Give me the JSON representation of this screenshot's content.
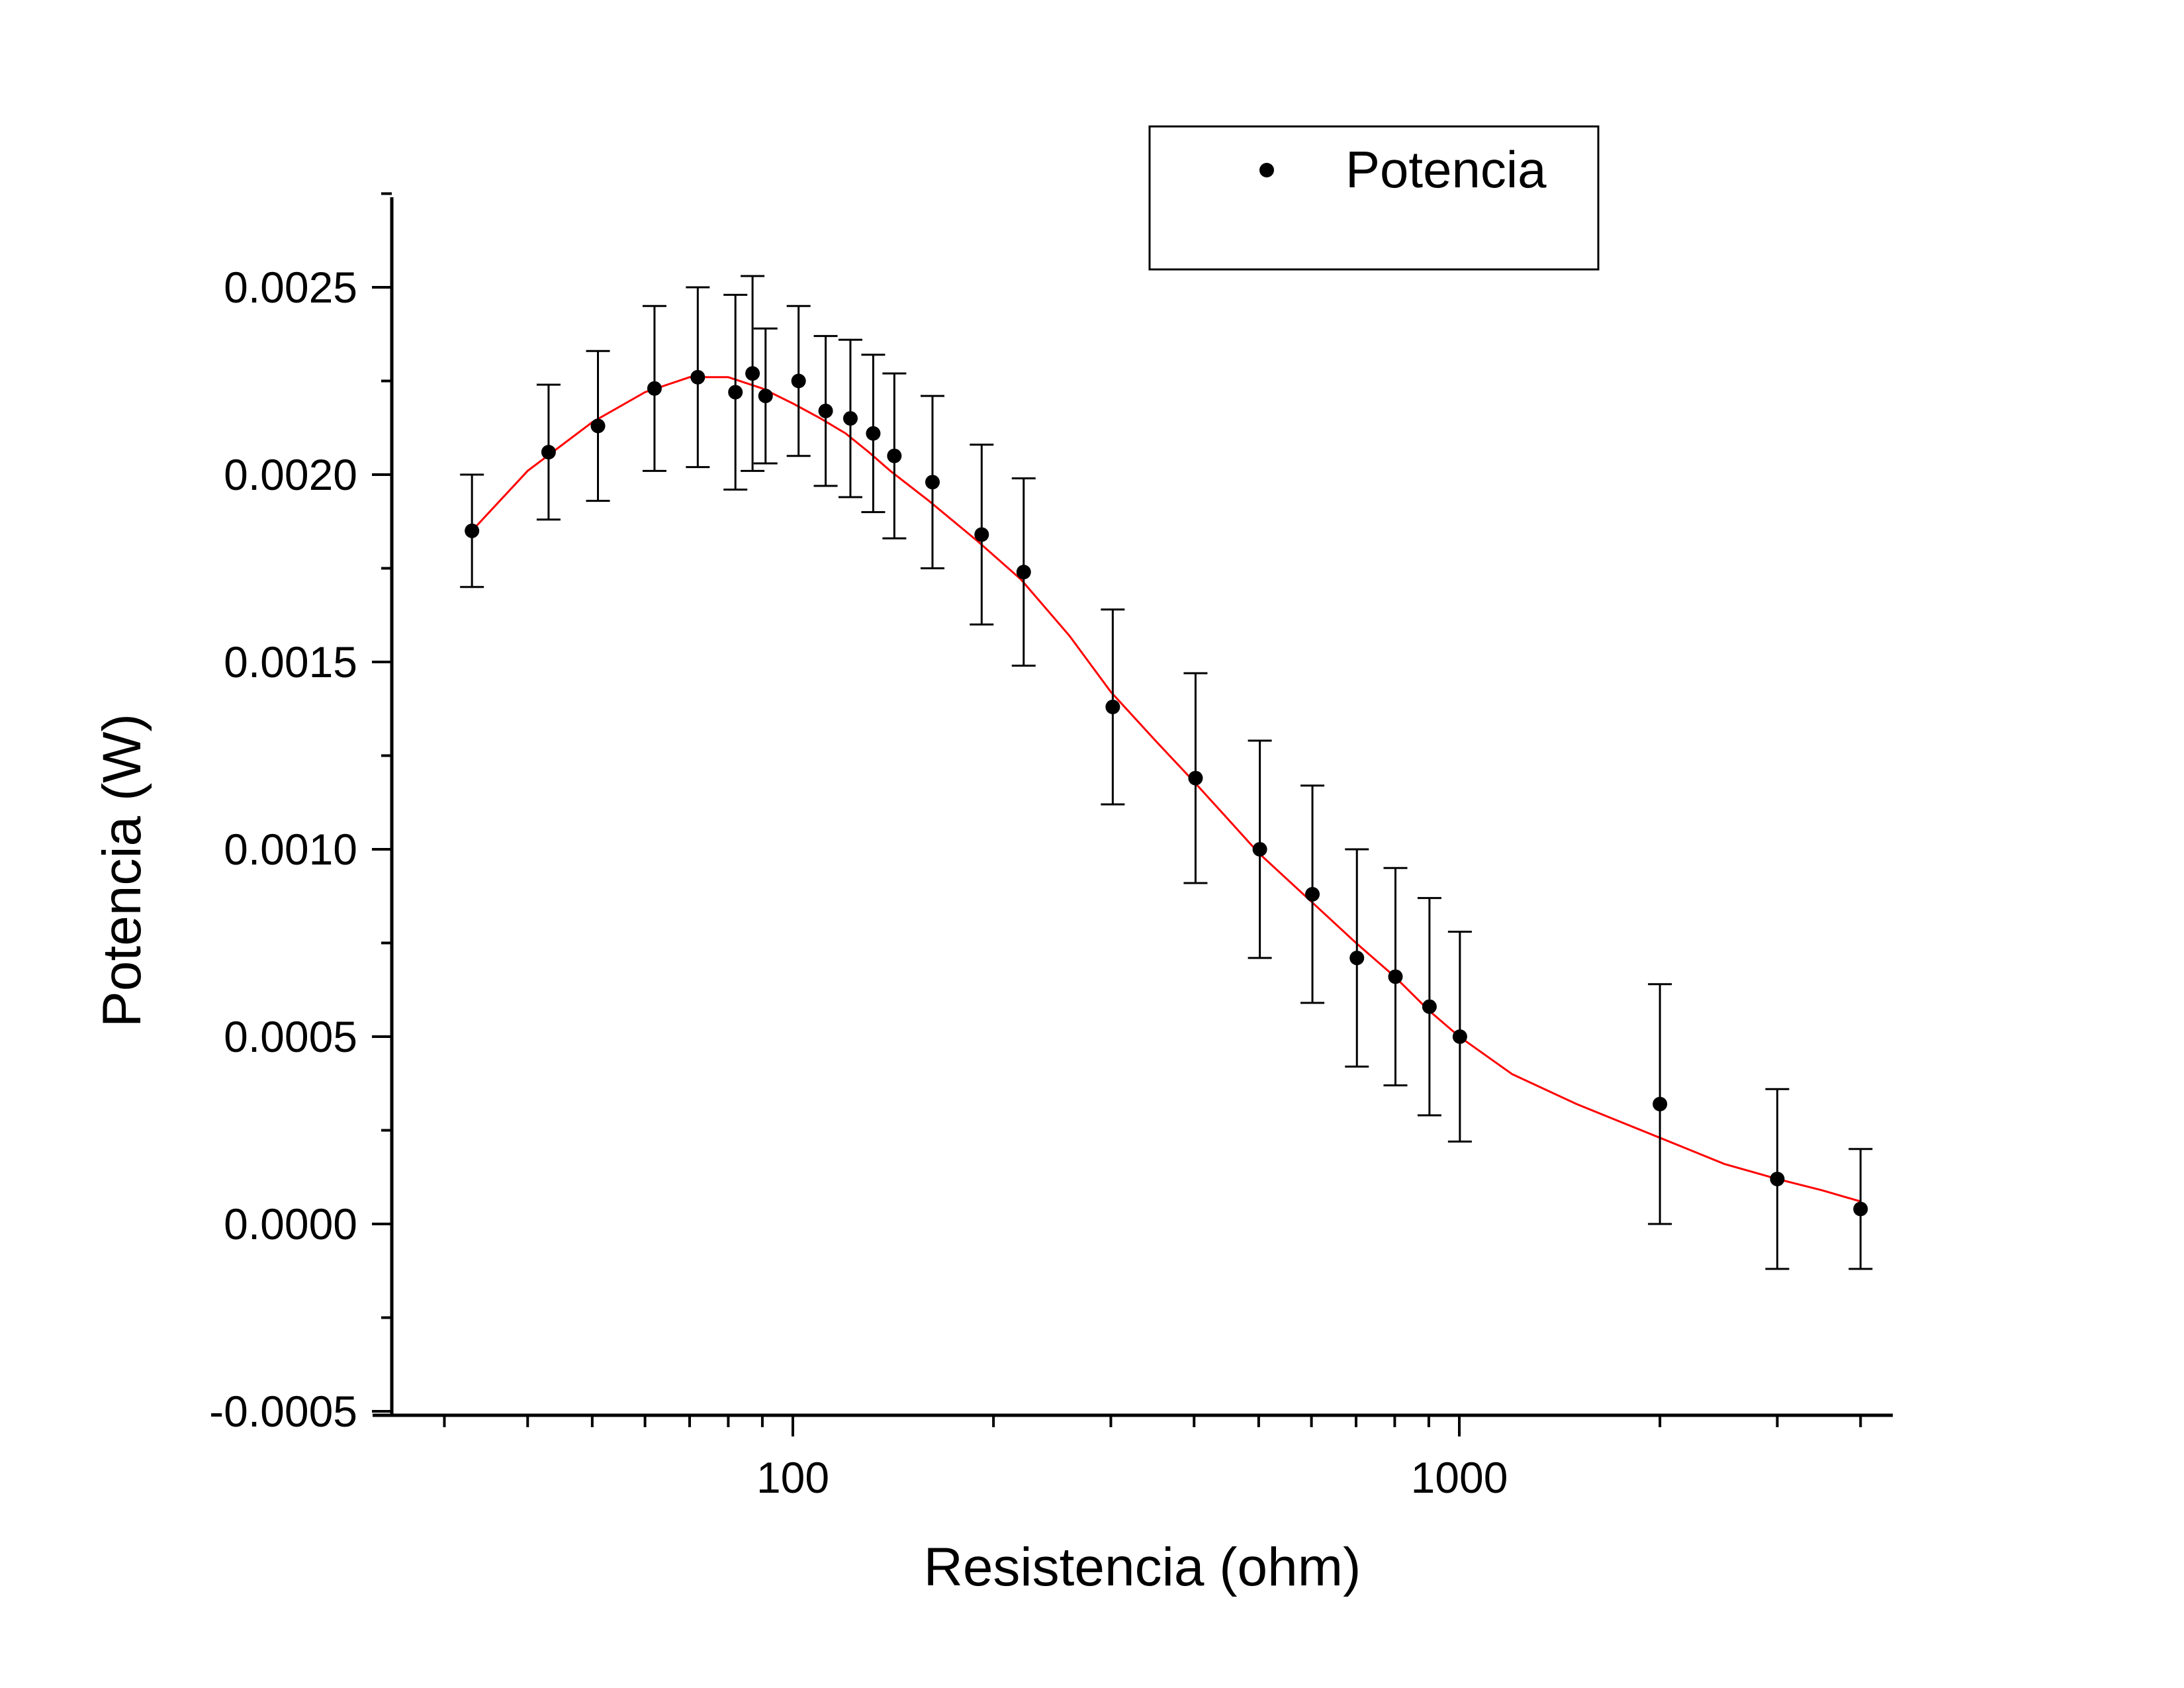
{
  "chart_data": {
    "type": "scatter",
    "xlabel": "Resistencia (ohm)",
    "ylabel": "Potencia (W)",
    "xscale": "log",
    "xlim": [
      25,
      4700
    ],
    "ylim": [
      -0.0005,
      0.0028
    ],
    "x_major_ticks": [
      100,
      1000
    ],
    "x_tick_labels": [
      "100",
      "1000"
    ],
    "y_ticks": [
      -0.0005,
      0.0,
      0.0005,
      0.001,
      0.0015,
      0.002,
      0.0025
    ],
    "y_tick_labels": [
      "-0.0005",
      "0.0000",
      "0.0005",
      "0.0010",
      "0.0015",
      "0.0020",
      "0.0025"
    ],
    "grid": false,
    "legend": {
      "position": "top-right",
      "entries": [
        "Potencia"
      ]
    },
    "series": [
      {
        "name": "Potencia",
        "color": "#000000",
        "marker": "circle",
        "x": [
          33,
          43,
          51,
          62,
          72,
          82,
          87,
          91,
          102,
          112,
          122,
          132,
          142,
          162,
          192,
          222,
          302,
          402,
          502,
          602,
          702,
          802,
          902,
          1002,
          2000,
          3000,
          4000
        ],
        "y": [
          0.00185,
          0.00206,
          0.00213,
          0.00223,
          0.00226,
          0.00222,
          0.00227,
          0.00221,
          0.00225,
          0.00217,
          0.00215,
          0.00211,
          0.00205,
          0.00198,
          0.00184,
          0.00174,
          0.00138,
          0.00119,
          0.001,
          0.00088,
          0.00071,
          0.00066,
          0.00058,
          0.0005,
          0.00032,
          0.00012,
          4e-05
        ],
        "error": [
          0.00015,
          0.00018,
          0.0002,
          0.00022,
          0.00024,
          0.00026,
          0.00026,
          0.00018,
          0.0002,
          0.0002,
          0.00021,
          0.00021,
          0.00022,
          0.00023,
          0.00024,
          0.00025,
          0.00026,
          0.00028,
          0.00029,
          0.00029,
          0.00029,
          0.00029,
          0.00029,
          0.00028,
          0.00032,
          0.00024,
          0.00016
        ]
      }
    ],
    "fit": {
      "color": "#ff0000",
      "x": [
        33,
        40,
        50,
        60,
        70,
        80,
        90,
        100,
        110,
        120,
        130,
        140,
        160,
        190,
        220,
        260,
        300,
        350,
        400,
        450,
        500,
        600,
        700,
        800,
        900,
        1000,
        1200,
        1500,
        2000,
        2500,
        3000,
        3500,
        4000
      ],
      "y": [
        0.00185,
        0.00201,
        0.00214,
        0.00222,
        0.00226,
        0.00226,
        0.00223,
        0.00219,
        0.00215,
        0.00211,
        0.00206,
        0.00201,
        0.00193,
        0.00182,
        0.00172,
        0.00157,
        0.00142,
        0.00129,
        0.00118,
        0.00108,
        0.00099,
        0.00086,
        0.00075,
        0.00066,
        0.00057,
        0.0005,
        0.0004,
        0.00032,
        0.00023,
        0.00016,
        0.00012,
        9e-05,
        6e-05
      ]
    }
  }
}
